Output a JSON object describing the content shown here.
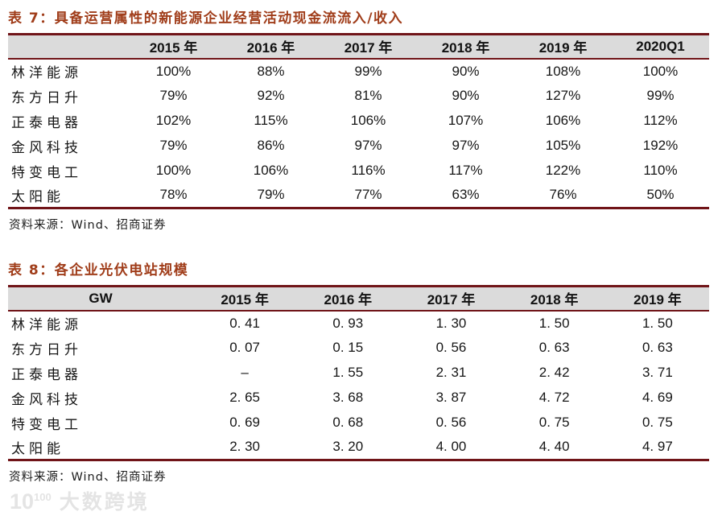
{
  "colors": {
    "title_accent": "#A03D1A",
    "rule_line": "#701418",
    "header_bg": "#DBDBDB",
    "body_text": "#161616",
    "watermark": "#E4E4E4"
  },
  "table7": {
    "title": "表 7：具备运营属性的新能源企业经营活动现金流流入/收入",
    "columns": [
      "",
      "2015 年",
      "2016 年",
      "2017 年",
      "2018 年",
      "2019 年",
      "2020Q1"
    ],
    "rows": [
      {
        "name": "林洋能源",
        "values": [
          "100%",
          "88%",
          "99%",
          "90%",
          "108%",
          "100%"
        ]
      },
      {
        "name": "东方日升",
        "values": [
          "79%",
          "92%",
          "81%",
          "90%",
          "127%",
          "99%"
        ]
      },
      {
        "name": "正泰电器",
        "values": [
          "102%",
          "115%",
          "106%",
          "107%",
          "106%",
          "112%"
        ]
      },
      {
        "name": "金风科技",
        "values": [
          "79%",
          "86%",
          "97%",
          "97%",
          "105%",
          "192%"
        ]
      },
      {
        "name": "特变电工",
        "values": [
          "100%",
          "106%",
          "116%",
          "117%",
          "122%",
          "110%"
        ]
      },
      {
        "name": "太阳能",
        "values": [
          "78%",
          "79%",
          "77%",
          "63%",
          "76%",
          "50%"
        ]
      }
    ],
    "source": "资料来源：Wind、招商证券"
  },
  "table8": {
    "title": "表 8：各企业光伏电站规模",
    "columns": [
      "GW",
      "2015 年",
      "2016 年",
      "2017 年",
      "2018 年",
      "2019 年"
    ],
    "rows": [
      {
        "name": "林洋能源",
        "values": [
          "0. 41",
          "0. 93",
          "1. 30",
          "1. 50",
          "1. 50"
        ]
      },
      {
        "name": "东方日升",
        "values": [
          "0. 07",
          "0. 15",
          "0. 56",
          "0. 63",
          "0. 63"
        ]
      },
      {
        "name": "正泰电器",
        "values": [
          "–",
          "1. 55",
          "2. 31",
          "2. 42",
          "3. 71"
        ]
      },
      {
        "name": "金风科技",
        "values": [
          "2. 65",
          "3. 68",
          "3. 87",
          "4. 72",
          "4. 69"
        ]
      },
      {
        "name": "特变电工",
        "values": [
          "0. 69",
          "0. 68",
          "0. 56",
          "0. 75",
          "0. 75"
        ]
      },
      {
        "name": "太阳能",
        "values": [
          "2. 30",
          "3. 20",
          "4. 00",
          "4. 40",
          "4. 97"
        ]
      }
    ],
    "source": "资料来源：Wind、招商证券"
  },
  "watermark": {
    "logo_base": "10",
    "logo_sup": "100",
    "brand": "大数跨境"
  }
}
